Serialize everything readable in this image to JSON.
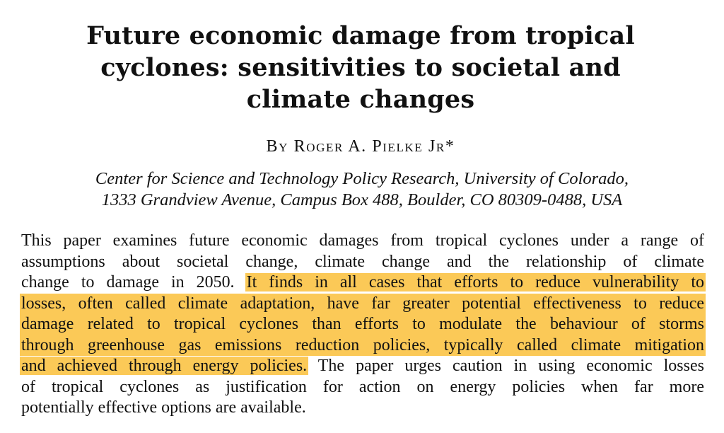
{
  "paper": {
    "title_lines": [
      "Future economic damage from tropical",
      "cyclones: sensitivities to societal and",
      "climate changes"
    ],
    "author": "By Roger A. Pielke Jr*",
    "affiliation_lines": [
      "Center for Science and Technology Policy Research, University of Colorado,",
      "1333 Grandview Avenue, Campus Box 488, Boulder, CO 80309-0488, USA"
    ],
    "abstract": {
      "line1": "This paper examines future economic damages from tropical cyclones under a range of",
      "line2": "assumptions about societal change, climate change and the relationship of climate",
      "line3_plain": "change to damage in 2050. ",
      "line3_highlight": "It finds in all cases that efforts to reduce vulnerability to",
      "line4_highlight": "losses, often called climate adaptation, have far greater potential effectiveness to reduce",
      "line5_highlight": "damage related to tropical cyclones than efforts to modulate the behaviour of storms",
      "line6_highlight": "through greenhouse gas emissions reduction policies, typically called climate mitigation",
      "line7_highlight": "and achieved through energy policies.",
      "line7_plain": " The paper urges caution in using economic losses",
      "line8": "of tropical cyclones as justification for action on energy policies when far more",
      "line9": "potentially effective options are available."
    },
    "highlight_color": "#fbc957"
  }
}
